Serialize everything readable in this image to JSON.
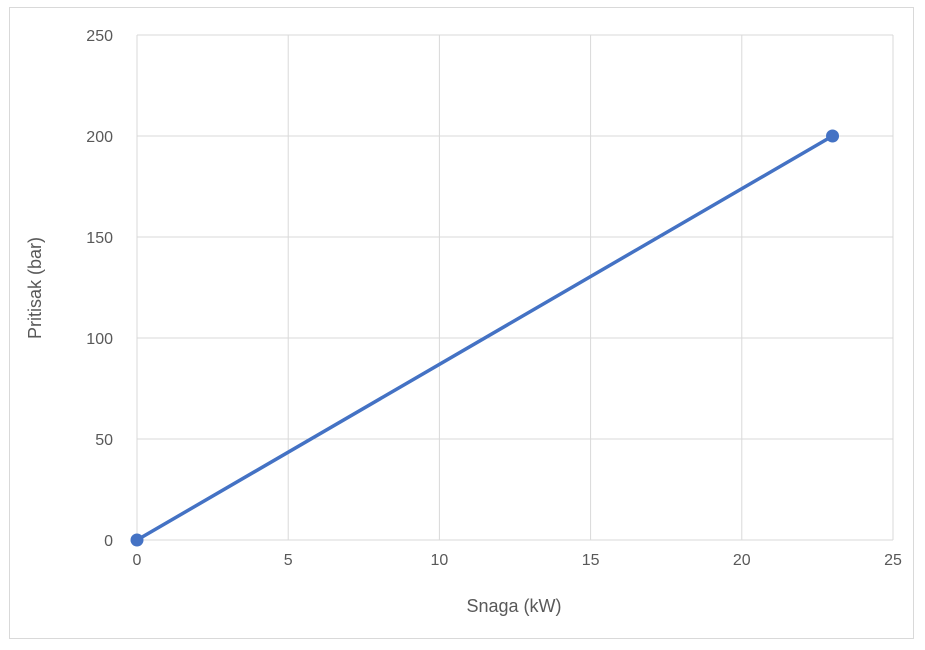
{
  "chart_data": {
    "type": "scatter",
    "title": "",
    "xlabel": "Snaga (kW)",
    "ylabel": "Pritisak (bar)",
    "xlim": [
      0,
      25
    ],
    "ylim": [
      0,
      250
    ],
    "x_ticks": [
      0,
      5,
      10,
      15,
      20,
      25
    ],
    "y_ticks": [
      0,
      50,
      100,
      150,
      200,
      250
    ],
    "grid": true,
    "legend": "none",
    "series": [
      {
        "color": "#4472C4",
        "points": [
          {
            "x": 0,
            "y": 0
          },
          {
            "x": 23,
            "y": 200
          }
        ],
        "style": "line-with-markers"
      }
    ]
  }
}
